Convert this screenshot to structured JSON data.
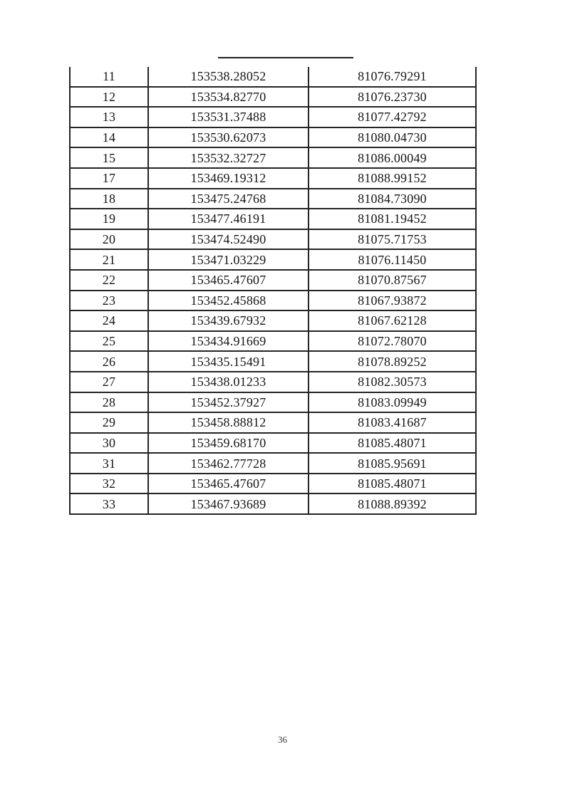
{
  "page": {
    "number": "36"
  },
  "table": {
    "rows": [
      [
        "11",
        "153538.28052",
        "81076.79291"
      ],
      [
        "12",
        "153534.82770",
        "81076.23730"
      ],
      [
        "13",
        "153531.37488",
        "81077.42792"
      ],
      [
        "14",
        "153530.62073",
        "81080.04730"
      ],
      [
        "15",
        "153532.32727",
        "81086.00049"
      ],
      [
        "17",
        "153469.19312",
        "81088.99152"
      ],
      [
        "18",
        "153475.24768",
        "81084.73090"
      ],
      [
        "19",
        "153477.46191",
        "81081.19452"
      ],
      [
        "20",
        "153474.52490",
        "81075.71753"
      ],
      [
        "21",
        "153471.03229",
        "81076.11450"
      ],
      [
        "22",
        "153465.47607",
        "81070.87567"
      ],
      [
        "23",
        "153452.45868",
        "81067.93872"
      ],
      [
        "24",
        "153439.67932",
        "81067.62128"
      ],
      [
        "25",
        "153434.91669",
        "81072.78070"
      ],
      [
        "26",
        "153435.15491",
        "81078.89252"
      ],
      [
        "27",
        "153438.01233",
        "81082.30573"
      ],
      [
        "28",
        "153452.37927",
        "81083.09949"
      ],
      [
        "29",
        "153458.88812",
        "81083.41687"
      ],
      [
        "30",
        "153459.68170",
        "81085.48071"
      ],
      [
        "31",
        "153462.77728",
        "81085.95691"
      ],
      [
        "32",
        "153465.47607",
        "81085.48071"
      ],
      [
        "33",
        "153467.93689",
        "81088.89392"
      ]
    ]
  }
}
